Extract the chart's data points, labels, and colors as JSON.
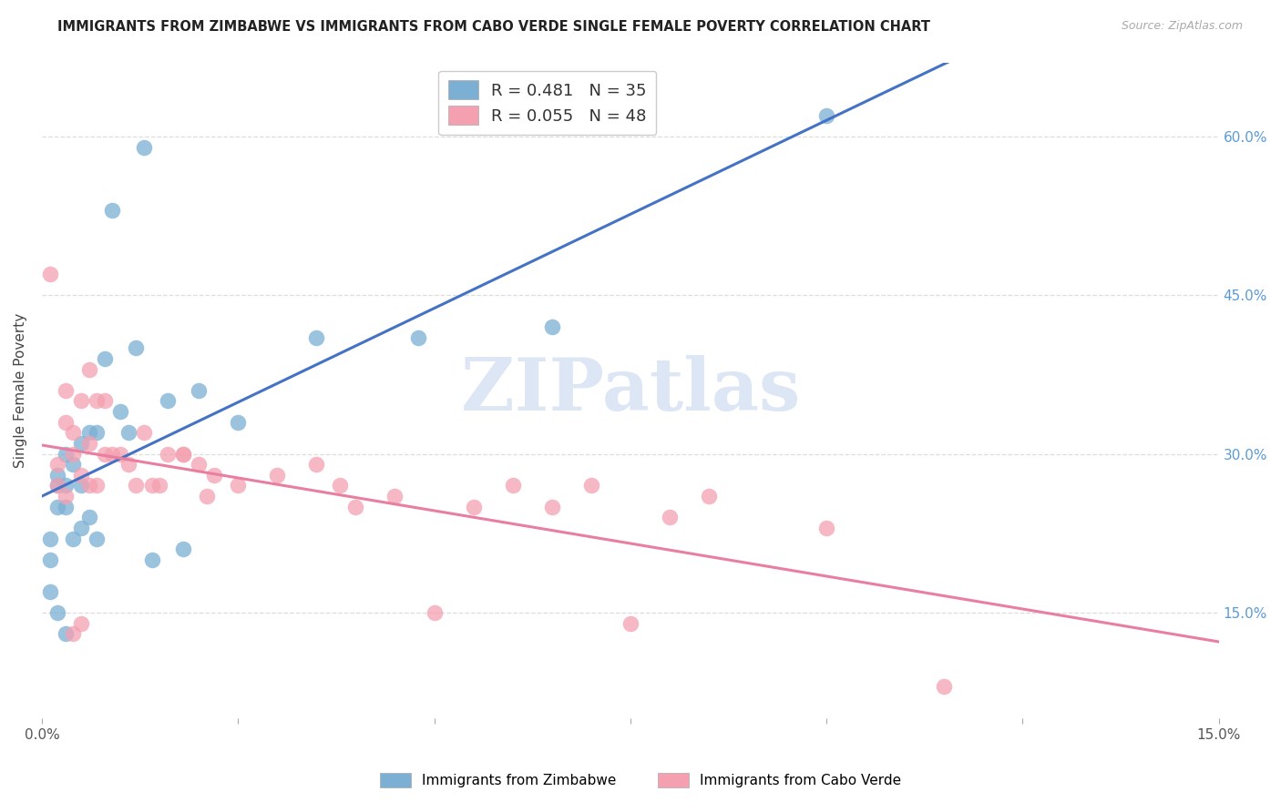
{
  "title": "IMMIGRANTS FROM ZIMBABWE VS IMMIGRANTS FROM CABO VERDE SINGLE FEMALE POVERTY CORRELATION CHART",
  "source": "Source: ZipAtlas.com",
  "ylabel": "Single Female Poverty",
  "yticks": [
    "60.0%",
    "45.0%",
    "30.0%",
    "15.0%"
  ],
  "ytick_vals": [
    0.6,
    0.45,
    0.3,
    0.15
  ],
  "xlim": [
    0.0,
    0.15
  ],
  "ylim": [
    0.05,
    0.67
  ],
  "legend1_r": "R = 0.481",
  "legend1_n": "N = 35",
  "legend2_r": "R = 0.055",
  "legend2_n": "N = 48",
  "color_blue": "#7BAFD4",
  "color_pink": "#F4A0B0",
  "color_line_blue": "#4472C4",
  "color_line_pink": "#E97FA0",
  "watermark": "ZIPatlas",
  "legend_label1": "Immigrants from Zimbabwe",
  "legend_label2": "Immigrants from Cabo Verde",
  "zimbabwe_x": [
    0.001,
    0.001,
    0.001,
    0.002,
    0.002,
    0.002,
    0.002,
    0.003,
    0.003,
    0.003,
    0.003,
    0.004,
    0.004,
    0.005,
    0.005,
    0.005,
    0.006,
    0.006,
    0.007,
    0.007,
    0.008,
    0.009,
    0.01,
    0.011,
    0.012,
    0.013,
    0.014,
    0.016,
    0.018,
    0.02,
    0.025,
    0.035,
    0.048,
    0.065,
    0.1
  ],
  "zimbabwe_y": [
    0.22,
    0.2,
    0.17,
    0.28,
    0.27,
    0.25,
    0.15,
    0.3,
    0.27,
    0.25,
    0.13,
    0.29,
    0.22,
    0.31,
    0.27,
    0.23,
    0.32,
    0.24,
    0.32,
    0.22,
    0.39,
    0.53,
    0.34,
    0.32,
    0.4,
    0.59,
    0.2,
    0.35,
    0.21,
    0.36,
    0.33,
    0.41,
    0.41,
    0.42,
    0.62
  ],
  "caboverde_x": [
    0.001,
    0.002,
    0.002,
    0.003,
    0.003,
    0.003,
    0.004,
    0.004,
    0.004,
    0.005,
    0.005,
    0.005,
    0.006,
    0.006,
    0.006,
    0.007,
    0.007,
    0.008,
    0.008,
    0.009,
    0.01,
    0.011,
    0.012,
    0.013,
    0.014,
    0.015,
    0.016,
    0.018,
    0.018,
    0.02,
    0.021,
    0.022,
    0.025,
    0.03,
    0.035,
    0.038,
    0.04,
    0.045,
    0.05,
    0.055,
    0.06,
    0.065,
    0.07,
    0.075,
    0.08,
    0.085,
    0.1,
    0.115
  ],
  "caboverde_y": [
    0.47,
    0.29,
    0.27,
    0.36,
    0.33,
    0.26,
    0.32,
    0.3,
    0.13,
    0.35,
    0.28,
    0.14,
    0.38,
    0.31,
    0.27,
    0.35,
    0.27,
    0.35,
    0.3,
    0.3,
    0.3,
    0.29,
    0.27,
    0.32,
    0.27,
    0.27,
    0.3,
    0.3,
    0.3,
    0.29,
    0.26,
    0.28,
    0.27,
    0.28,
    0.29,
    0.27,
    0.25,
    0.26,
    0.15,
    0.25,
    0.27,
    0.25,
    0.27,
    0.14,
    0.24,
    0.26,
    0.23,
    0.08
  ]
}
